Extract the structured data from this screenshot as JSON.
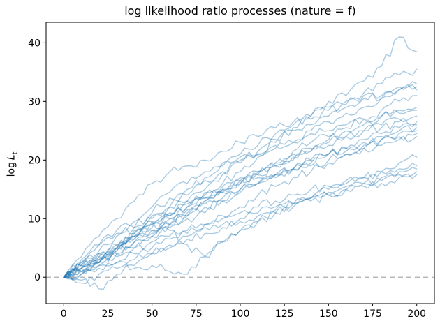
{
  "title": "log likelihood ratio processes (nature = f)",
  "ylabel": {
    "prefix": "log ",
    "var": "L",
    "sub": "t"
  },
  "chart_data": {
    "type": "line",
    "title": "log likelihood ratio processes (nature = f)",
    "xlabel": "",
    "ylabel": "log L_t",
    "xlim": [
      -10,
      210
    ],
    "ylim": [
      -4.5,
      43.5
    ],
    "x_ticks": [
      0,
      25,
      50,
      75,
      100,
      125,
      150,
      175,
      200
    ],
    "y_ticks": [
      0,
      10,
      20,
      30,
      40
    ],
    "grid": false,
    "legend": false,
    "line_color": "#1f77b4",
    "line_alpha": 0.38,
    "line_width": 1.4,
    "zero_line": {
      "y": 0,
      "style": "dashed",
      "color": "#ababab"
    },
    "axis_color": "#000000",
    "x_knots": [
      0,
      10,
      20,
      30,
      40,
      50,
      60,
      70,
      80,
      90,
      100,
      110,
      120,
      130,
      140,
      150,
      160,
      170,
      180,
      190,
      200
    ],
    "series": [
      {
        "name": "path-01",
        "values": [
          0,
          1.5,
          3.5,
          5,
          7,
          9,
          10.5,
          13,
          15,
          17.5,
          20,
          21.5,
          23,
          25.5,
          27.5,
          30,
          31,
          33.5,
          36,
          41,
          38.5
        ]
      },
      {
        "name": "path-02",
        "values": [
          0,
          2,
          4.5,
          7,
          8.5,
          11,
          13.5,
          15,
          17,
          19.5,
          21,
          22.5,
          24.5,
          26,
          27.5,
          29,
          30,
          31.5,
          33,
          34.5,
          35.5
        ]
      },
      {
        "name": "path-03",
        "values": [
          0,
          1,
          2.5,
          5,
          7.5,
          9,
          10,
          12.5,
          14.5,
          16,
          18,
          20.5,
          22,
          23,
          25,
          26.5,
          28,
          29,
          30.5,
          32,
          33
        ]
      },
      {
        "name": "path-04",
        "values": [
          0,
          2.5,
          4,
          5.5,
          8,
          10.5,
          12,
          14,
          16.5,
          18,
          19.5,
          21,
          23.5,
          25,
          26,
          27.5,
          29.5,
          31,
          30.5,
          32,
          32.5
        ]
      },
      {
        "name": "path-05",
        "values": [
          0,
          3.5,
          7,
          10,
          13,
          16,
          18,
          19,
          20,
          21.5,
          23,
          24,
          25.5,
          26.5,
          27,
          28.5,
          29,
          30.5,
          31,
          32.5,
          32
        ]
      },
      {
        "name": "path-06",
        "values": [
          0,
          1.5,
          3,
          4.5,
          6.5,
          8,
          10,
          11,
          13,
          14.5,
          16.5,
          18,
          19.5,
          21.5,
          23,
          24,
          25.5,
          27,
          28.5,
          30,
          31
        ]
      },
      {
        "name": "path-07",
        "values": [
          0,
          2,
          3,
          5.5,
          7,
          9.5,
          11,
          12,
          14,
          15.5,
          17,
          18,
          19.5,
          21,
          22,
          23.5,
          25,
          26,
          27.5,
          28.5,
          29
        ]
      },
      {
        "name": "path-08",
        "values": [
          0,
          2.5,
          5.5,
          8,
          9.5,
          12,
          14.5,
          16,
          18,
          19,
          20.5,
          21,
          22.5,
          23,
          24.5,
          25,
          26,
          27,
          27.5,
          28,
          28.5
        ]
      },
      {
        "name": "path-09",
        "values": [
          0,
          1,
          2,
          4,
          6,
          7.5,
          9,
          11.5,
          13,
          14.5,
          16,
          17.5,
          19,
          20,
          21.5,
          22.5,
          24,
          25,
          26,
          27,
          27.5
        ]
      },
      {
        "name": "path-10",
        "values": [
          0,
          0.5,
          2.5,
          4,
          5,
          7,
          8.5,
          10,
          11,
          13,
          14.5,
          16,
          17,
          18.5,
          20,
          21,
          22,
          23.5,
          24.5,
          25.5,
          26.5
        ]
      },
      {
        "name": "path-11",
        "values": [
          0,
          2,
          4,
          5,
          7.5,
          8.5,
          10.5,
          12,
          13.5,
          15,
          16.5,
          17.5,
          19,
          20.5,
          21.5,
          23,
          24,
          25,
          25.5,
          26.5,
          26
        ]
      },
      {
        "name": "path-12",
        "values": [
          0,
          1.5,
          2.5,
          4.5,
          6,
          7,
          9,
          10.5,
          12,
          13,
          15,
          16,
          17.5,
          18.5,
          20,
          21,
          22,
          23,
          24,
          25,
          25.5
        ]
      },
      {
        "name": "path-13",
        "values": [
          0,
          -0.5,
          -2,
          0.5,
          2,
          4,
          5.5,
          7,
          9,
          10.5,
          12,
          14,
          15.5,
          17,
          18,
          19.5,
          21,
          22,
          23.5,
          24.5,
          25
        ]
      },
      {
        "name": "path-14",
        "values": [
          0,
          1,
          3.5,
          5,
          6.5,
          8,
          9,
          10.5,
          12.5,
          13.5,
          15,
          16,
          17.5,
          18.5,
          19.5,
          21,
          21.5,
          22.5,
          23.5,
          24,
          24.5
        ]
      },
      {
        "name": "path-15",
        "values": [
          0,
          3,
          5.5,
          7.5,
          8.5,
          10,
          12,
          13,
          13.5,
          15,
          16,
          17,
          17.5,
          18.5,
          19,
          20,
          21,
          22,
          22.5,
          23.5,
          24
        ]
      },
      {
        "name": "path-16",
        "values": [
          0,
          1,
          2,
          2.5,
          1.5,
          2,
          1,
          0.5,
          3.5,
          6,
          8,
          9.5,
          11,
          12,
          13.5,
          15,
          16,
          17,
          18,
          19.5,
          20.5
        ]
      },
      {
        "name": "path-17",
        "values": [
          0,
          1.5,
          2.5,
          3.5,
          5,
          6,
          7,
          8,
          9,
          10,
          11,
          12,
          13,
          14,
          15,
          15.5,
          16.5,
          17,
          18,
          18.5,
          19
        ]
      },
      {
        "name": "path-18",
        "values": [
          0,
          -1,
          0.5,
          1.5,
          3,
          4,
          5,
          6.5,
          7.5,
          8.5,
          9.5,
          10.5,
          11.5,
          12.5,
          13,
          14,
          15,
          16,
          17,
          18,
          18.5
        ]
      },
      {
        "name": "path-19",
        "values": [
          0,
          1,
          2.5,
          5,
          7,
          9.5,
          8,
          5.5,
          3.5,
          6,
          8,
          9.5,
          11,
          12.5,
          13.5,
          14.5,
          15.5,
          16,
          16.5,
          17.5,
          18
        ]
      },
      {
        "name": "path-20",
        "values": [
          0,
          0.5,
          1.5,
          2.5,
          4,
          5,
          6.5,
          7.5,
          8.5,
          9,
          10,
          11,
          12,
          12.5,
          13.5,
          14,
          15,
          15.5,
          16,
          17,
          17.5
        ]
      }
    ]
  },
  "x_tick_labels": [
    "0",
    "25",
    "50",
    "75",
    "100",
    "125",
    "150",
    "175",
    "200"
  ],
  "y_tick_labels": [
    "0",
    "10",
    "20",
    "30",
    "40"
  ]
}
